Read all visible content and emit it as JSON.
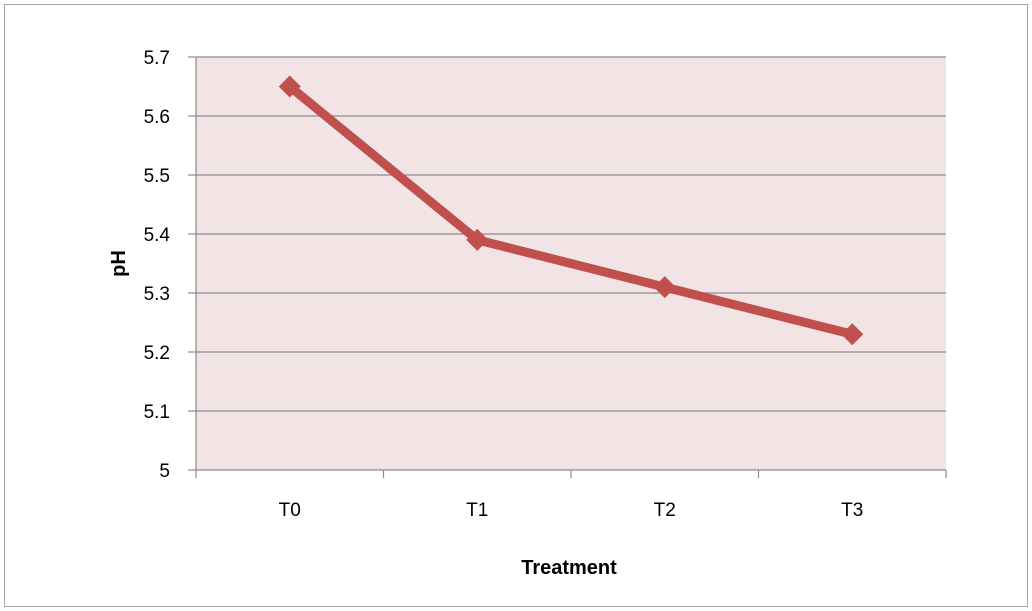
{
  "chart_data": {
    "type": "line",
    "categories": [
      "T0",
      "T1",
      "T2",
      "T3"
    ],
    "series": [
      {
        "values": [
          5.65,
          5.39,
          5.31,
          5.23
        ],
        "color": "#c0504d",
        "marker": "diamond"
      }
    ],
    "xlabel": "Treatment",
    "ylabel": "pH",
    "ylim": [
      5,
      5.7
    ],
    "yticks": [
      "5",
      "5.1",
      "5.2",
      "5.3",
      "5.4",
      "5.5",
      "5.6",
      "5.7"
    ],
    "grid": true,
    "plot_background": "#f2e4e4",
    "gridline_color": "#8c8c8c"
  }
}
